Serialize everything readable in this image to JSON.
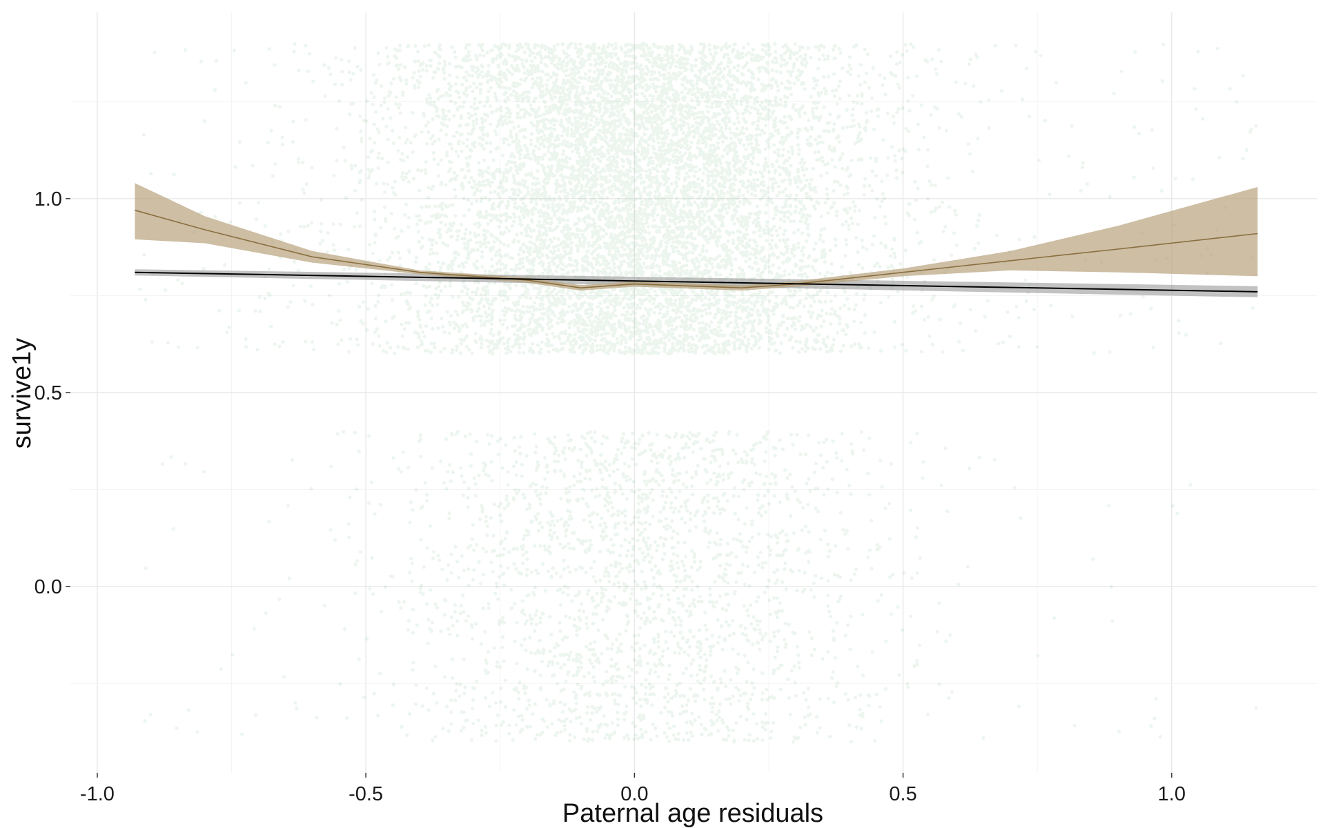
{
  "chart_data": {
    "type": "scatter",
    "title": "",
    "xlabel": "Paternal age residuals",
    "ylabel": "survive1y",
    "xlim": [
      -1.05,
      1.27
    ],
    "ylim": [
      -0.48,
      1.48
    ],
    "x_ticks": [
      {
        "value": -1.0,
        "label": "-1.0"
      },
      {
        "value": -0.5,
        "label": "-0.5"
      },
      {
        "value": 0.0,
        "label": "0.0"
      },
      {
        "value": 0.5,
        "label": "0.5"
      },
      {
        "value": 1.0,
        "label": "1.0"
      }
    ],
    "y_ticks": [
      {
        "value": 0.0,
        "label": "0.0"
      },
      {
        "value": 0.5,
        "label": "0.5"
      },
      {
        "value": 1.0,
        "label": "1.0"
      }
    ],
    "grid": true,
    "legend": "none",
    "jitter": {
      "outcome_values": [
        0,
        1
      ],
      "y_spread": 0.4,
      "x_range": [
        -0.93,
        1.16
      ],
      "approx_share_outcome_1": 0.79
    },
    "linear_fit": {
      "x": [
        -0.93,
        1.16
      ],
      "y": [
        0.81,
        0.76
      ],
      "ci_halfwidth": 0.008,
      "color": "#000000",
      "band_color": "#9a9a9a"
    },
    "loess_fit": {
      "x": [
        -0.93,
        -0.8,
        -0.6,
        -0.4,
        -0.2,
        -0.1,
        0.0,
        0.1,
        0.2,
        0.3,
        0.5,
        0.7,
        0.9,
        1.16
      ],
      "y": [
        0.97,
        0.92,
        0.85,
        0.81,
        0.79,
        0.77,
        0.78,
        0.775,
        0.77,
        0.78,
        0.81,
        0.84,
        0.87,
        0.91
      ],
      "ci_lower": [
        0.895,
        0.885,
        0.835,
        0.805,
        0.783,
        0.763,
        0.773,
        0.768,
        0.763,
        0.773,
        0.8,
        0.815,
        0.81,
        0.8
      ],
      "ci_upper": [
        1.04,
        0.955,
        0.865,
        0.815,
        0.797,
        0.777,
        0.787,
        0.782,
        0.777,
        0.787,
        0.82,
        0.865,
        0.93,
        1.03
      ],
      "color": "#8a6e3e",
      "band_color": "#b8a27e"
    },
    "point_color": "#2e8b3e",
    "point_opacity": 0.09
  }
}
